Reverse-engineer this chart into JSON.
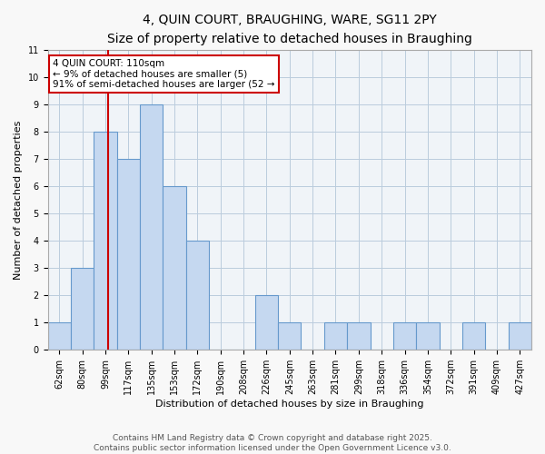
{
  "title": "4, QUIN COURT, BRAUGHING, WARE, SG11 2PY",
  "subtitle": "Size of property relative to detached houses in Braughing",
  "xlabel": "Distribution of detached houses by size in Braughing",
  "ylabel": "Number of detached properties",
  "categories": [
    "62sqm",
    "80sqm",
    "99sqm",
    "117sqm",
    "135sqm",
    "153sqm",
    "172sqm",
    "190sqm",
    "208sqm",
    "226sqm",
    "245sqm",
    "263sqm",
    "281sqm",
    "299sqm",
    "318sqm",
    "336sqm",
    "354sqm",
    "372sqm",
    "391sqm",
    "409sqm",
    "427sqm"
  ],
  "values": [
    1,
    3,
    8,
    7,
    9,
    6,
    4,
    0,
    0,
    2,
    1,
    0,
    1,
    1,
    0,
    1,
    1,
    0,
    1,
    0,
    1
  ],
  "bar_color": "#c5d8f0",
  "bar_edge_color": "#6699cc",
  "annotation_text": "4 QUIN COURT: 110sqm\n← 9% of detached houses are smaller (5)\n91% of semi-detached houses are larger (52 →",
  "annotation_box_color": "#ffffff",
  "annotation_box_edge": "#cc0000",
  "vline_color": "#cc0000",
  "vline_x": 2.11,
  "ylim": [
    0,
    11
  ],
  "yticks": [
    0,
    1,
    2,
    3,
    4,
    5,
    6,
    7,
    8,
    9,
    10,
    11
  ],
  "grid_color": "#bbccdd",
  "footnote": "Contains HM Land Registry data © Crown copyright and database right 2025.\nContains public sector information licensed under the Open Government Licence v3.0.",
  "title_fontsize": 10,
  "subtitle_fontsize": 9,
  "axis_label_fontsize": 8,
  "tick_fontsize": 7,
  "annotation_fontsize": 7.5,
  "footnote_fontsize": 6.5
}
